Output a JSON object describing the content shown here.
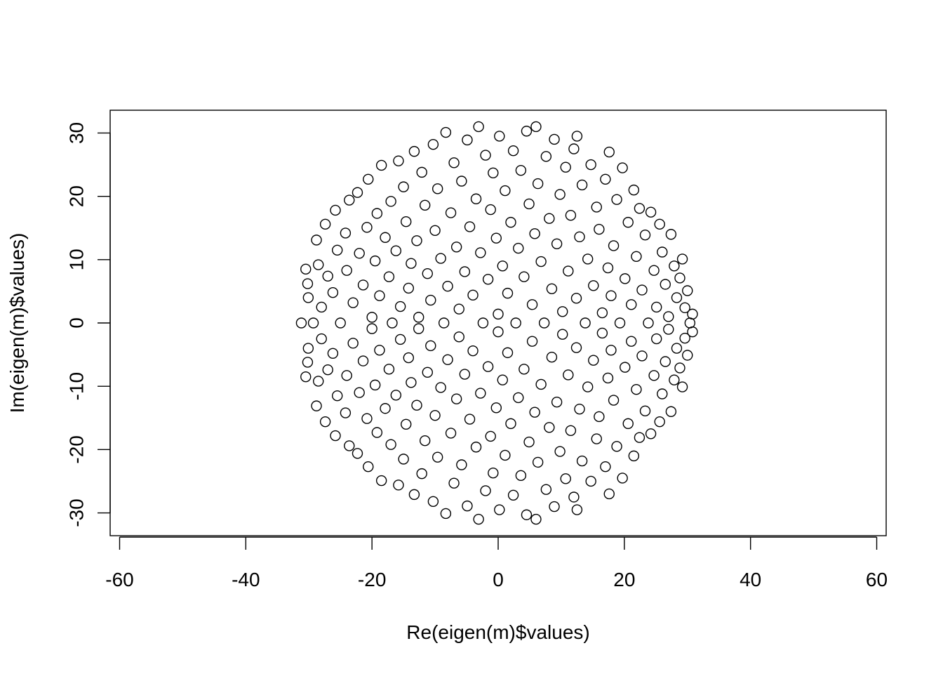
{
  "chart_data": {
    "type": "scatter",
    "title": "",
    "xlabel": "Re(eigen(m)$values)",
    "ylabel": "Im(eigen(m)$values)",
    "xlim": [
      -61.5,
      61.5
    ],
    "ylim": [
      -33.6,
      33.6
    ],
    "x_ticks": [
      -60,
      -40,
      -20,
      0,
      20,
      40,
      60
    ],
    "y_ticks": [
      -30,
      -20,
      -10,
      0,
      10,
      20,
      30
    ],
    "x_tick_labels": [
      "-60",
      "-40",
      "-20",
      "0",
      "20",
      "40",
      "60"
    ],
    "y_tick_labels": [
      "-30",
      "-20",
      "-10",
      "0",
      "10",
      "20",
      "30"
    ],
    "marker": "open-circle",
    "grid": false,
    "legend": "none",
    "point_color": "#000000",
    "series": [
      {
        "description": "Eigenvalues of a random matrix; approximately uniform in the disk of radius ~31.2 centred at the origin. Points are symmetric under complex conjugation (y -> -y). Approximate readings of visible points:",
        "points": [
          [
            -31.2,
            0.0
          ],
          [
            -30.5,
            8.5
          ],
          [
            -30.5,
            -8.5
          ],
          [
            -30.2,
            6.2
          ],
          [
            -30.2,
            -6.2
          ],
          [
            -30.1,
            4.0
          ],
          [
            -30.1,
            -4.0
          ],
          [
            -29.3,
            0.0
          ],
          [
            -28.8,
            13.1
          ],
          [
            -28.8,
            -13.1
          ],
          [
            -28.5,
            9.2
          ],
          [
            -28.5,
            -9.2
          ],
          [
            -28.0,
            2.5
          ],
          [
            -28.0,
            -2.5
          ],
          [
            -27.4,
            15.6
          ],
          [
            -27.4,
            -15.6
          ],
          [
            -27.0,
            7.4
          ],
          [
            -27.0,
            -7.4
          ],
          [
            -26.2,
            4.8
          ],
          [
            -26.2,
            -4.8
          ],
          [
            -25.8,
            17.8
          ],
          [
            -25.8,
            -17.8
          ],
          [
            -25.5,
            11.5
          ],
          [
            -25.5,
            -11.5
          ],
          [
            -25.0,
            0.0
          ],
          [
            -24.2,
            14.2
          ],
          [
            -24.2,
            -14.2
          ],
          [
            -24.0,
            8.3
          ],
          [
            -24.0,
            -8.3
          ],
          [
            -23.6,
            19.4
          ],
          [
            -23.6,
            -19.4
          ],
          [
            -23.0,
            3.2
          ],
          [
            -23.0,
            -3.2
          ],
          [
            -22.3,
            20.6
          ],
          [
            -22.3,
            -20.6
          ],
          [
            -22.0,
            11.0
          ],
          [
            -22.0,
            -11.0
          ],
          [
            -21.4,
            6.0
          ],
          [
            -21.4,
            -6.0
          ],
          [
            -20.8,
            15.1
          ],
          [
            -20.8,
            -15.1
          ],
          [
            -20.6,
            22.7
          ],
          [
            -20.6,
            -22.7
          ],
          [
            -20.0,
            0.9
          ],
          [
            -20.0,
            -0.9
          ],
          [
            -19.5,
            9.8
          ],
          [
            -19.5,
            -9.8
          ],
          [
            -19.2,
            17.3
          ],
          [
            -19.2,
            -17.3
          ],
          [
            -18.8,
            4.3
          ],
          [
            -18.8,
            -4.3
          ],
          [
            -18.5,
            24.9
          ],
          [
            -18.5,
            -24.9
          ],
          [
            -17.9,
            13.5
          ],
          [
            -17.9,
            -13.5
          ],
          [
            -17.3,
            7.3
          ],
          [
            -17.3,
            -7.3
          ],
          [
            -17.0,
            19.2
          ],
          [
            -17.0,
            -19.2
          ],
          [
            -16.8,
            0.0
          ],
          [
            -16.2,
            11.4
          ],
          [
            -16.2,
            -11.4
          ],
          [
            -15.8,
            25.6
          ],
          [
            -15.8,
            -25.6
          ],
          [
            -15.5,
            2.6
          ],
          [
            -15.5,
            -2.6
          ],
          [
            -15.0,
            21.5
          ],
          [
            -15.0,
            -21.5
          ],
          [
            -14.6,
            16.0
          ],
          [
            -14.6,
            -16.0
          ],
          [
            -14.2,
            5.5
          ],
          [
            -14.2,
            -5.5
          ],
          [
            -13.8,
            9.4
          ],
          [
            -13.8,
            -9.4
          ],
          [
            -13.3,
            27.1
          ],
          [
            -13.3,
            -27.1
          ],
          [
            -12.9,
            13.0
          ],
          [
            -12.9,
            -13.0
          ],
          [
            -12.6,
            0.9
          ],
          [
            -12.6,
            -0.9
          ],
          [
            -12.1,
            23.8
          ],
          [
            -12.1,
            -23.8
          ],
          [
            -11.6,
            18.6
          ],
          [
            -11.6,
            -18.6
          ],
          [
            -11.2,
            7.8
          ],
          [
            -11.2,
            -7.8
          ],
          [
            -10.7,
            3.6
          ],
          [
            -10.7,
            -3.6
          ],
          [
            -10.3,
            28.2
          ],
          [
            -10.3,
            -28.2
          ],
          [
            -10.0,
            14.6
          ],
          [
            -10.0,
            -14.6
          ],
          [
            -9.6,
            21.2
          ],
          [
            -9.6,
            -21.2
          ],
          [
            -9.1,
            10.2
          ],
          [
            -9.1,
            -10.2
          ],
          [
            -8.6,
            0.0
          ],
          [
            -8.3,
            30.1
          ],
          [
            -8.3,
            -30.1
          ],
          [
            -8.0,
            5.8
          ],
          [
            -8.0,
            -5.8
          ],
          [
            -7.5,
            17.4
          ],
          [
            -7.5,
            -17.4
          ],
          [
            -7.0,
            25.3
          ],
          [
            -7.0,
            -25.3
          ],
          [
            -6.6,
            12.0
          ],
          [
            -6.6,
            -12.0
          ],
          [
            -6.2,
            2.2
          ],
          [
            -6.2,
            -2.2
          ],
          [
            -5.8,
            22.4
          ],
          [
            -5.8,
            -22.4
          ],
          [
            -5.3,
            8.1
          ],
          [
            -5.3,
            -8.1
          ],
          [
            -4.9,
            28.9
          ],
          [
            -4.9,
            -28.9
          ],
          [
            -4.5,
            15.2
          ],
          [
            -4.5,
            -15.2
          ],
          [
            -4.0,
            4.4
          ],
          [
            -4.0,
            -4.4
          ],
          [
            -3.5,
            19.6
          ],
          [
            -3.5,
            -19.6
          ],
          [
            -3.1,
            31.0
          ],
          [
            -3.1,
            -31.0
          ],
          [
            -2.8,
            11.1
          ],
          [
            -2.8,
            -11.1
          ],
          [
            -2.4,
            0.0
          ],
          [
            -2.0,
            26.5
          ],
          [
            -2.0,
            -26.5
          ],
          [
            -1.6,
            6.9
          ],
          [
            -1.6,
            -6.9
          ],
          [
            -1.2,
            17.9
          ],
          [
            -1.2,
            -17.9
          ],
          [
            -0.8,
            23.7
          ],
          [
            -0.8,
            -23.7
          ],
          [
            -0.3,
            13.4
          ],
          [
            -0.3,
            -13.4
          ],
          [
            0.0,
            1.4
          ],
          [
            0.0,
            -1.4
          ],
          [
            0.2,
            29.5
          ],
          [
            0.2,
            -29.5
          ],
          [
            0.7,
            9.0
          ],
          [
            0.7,
            -9.0
          ],
          [
            1.1,
            20.9
          ],
          [
            1.1,
            -20.9
          ],
          [
            1.5,
            4.7
          ],
          [
            1.5,
            -4.7
          ],
          [
            2.0,
            15.9
          ],
          [
            2.0,
            -15.9
          ],
          [
            2.4,
            27.2
          ],
          [
            2.4,
            -27.2
          ],
          [
            2.8,
            0.0
          ],
          [
            3.2,
            11.8
          ],
          [
            3.2,
            -11.8
          ],
          [
            3.6,
            24.1
          ],
          [
            3.6,
            -24.1
          ],
          [
            4.1,
            7.3
          ],
          [
            4.1,
            -7.3
          ],
          [
            4.5,
            30.3
          ],
          [
            4.5,
            -30.3
          ],
          [
            4.9,
            18.8
          ],
          [
            4.9,
            -18.8
          ],
          [
            5.4,
            2.9
          ],
          [
            5.4,
            -2.9
          ],
          [
            5.8,
            14.1
          ],
          [
            5.8,
            -14.1
          ],
          [
            6.0,
            31.0
          ],
          [
            6.0,
            -31.0
          ],
          [
            6.3,
            22.0
          ],
          [
            6.3,
            -22.0
          ],
          [
            6.8,
            9.7
          ],
          [
            6.8,
            -9.7
          ],
          [
            7.3,
            0.0
          ],
          [
            7.6,
            26.3
          ],
          [
            7.6,
            -26.3
          ],
          [
            8.1,
            16.5
          ],
          [
            8.1,
            -16.5
          ],
          [
            8.5,
            5.4
          ],
          [
            8.5,
            -5.4
          ],
          [
            8.9,
            29.0
          ],
          [
            8.9,
            -29.0
          ],
          [
            9.3,
            12.5
          ],
          [
            9.3,
            -12.5
          ],
          [
            9.8,
            20.3
          ],
          [
            9.8,
            -20.3
          ],
          [
            10.2,
            1.8
          ],
          [
            10.2,
            -1.8
          ],
          [
            10.7,
            24.6
          ],
          [
            10.7,
            -24.6
          ],
          [
            11.1,
            8.2
          ],
          [
            11.1,
            -8.2
          ],
          [
            11.5,
            17.0
          ],
          [
            11.5,
            -17.0
          ],
          [
            12.0,
            27.5
          ],
          [
            12.0,
            -27.5
          ],
          [
            12.4,
            3.9
          ],
          [
            12.4,
            -3.9
          ],
          [
            12.5,
            29.5
          ],
          [
            12.5,
            -29.5
          ],
          [
            12.9,
            13.6
          ],
          [
            12.9,
            -13.6
          ],
          [
            13.3,
            21.8
          ],
          [
            13.3,
            -21.8
          ],
          [
            13.8,
            0.0
          ],
          [
            14.2,
            10.1
          ],
          [
            14.2,
            -10.1
          ],
          [
            14.7,
            25.0
          ],
          [
            14.7,
            -25.0
          ],
          [
            15.1,
            5.9
          ],
          [
            15.1,
            -5.9
          ],
          [
            15.6,
            18.3
          ],
          [
            15.6,
            -18.3
          ],
          [
            16.0,
            14.8
          ],
          [
            16.0,
            -14.8
          ],
          [
            16.5,
            1.6
          ],
          [
            16.5,
            -1.6
          ],
          [
            17.0,
            22.7
          ],
          [
            17.0,
            -22.7
          ],
          [
            17.4,
            8.7
          ],
          [
            17.4,
            -8.7
          ],
          [
            17.6,
            27.0
          ],
          [
            17.6,
            -27.0
          ],
          [
            17.9,
            4.3
          ],
          [
            17.9,
            -4.3
          ],
          [
            18.3,
            12.2
          ],
          [
            18.3,
            -12.2
          ],
          [
            18.8,
            19.5
          ],
          [
            18.8,
            -19.5
          ],
          [
            19.3,
            0.0
          ],
          [
            19.7,
            24.5
          ],
          [
            19.7,
            -24.5
          ],
          [
            20.1,
            7.0
          ],
          [
            20.1,
            -7.0
          ],
          [
            20.6,
            15.9
          ],
          [
            20.6,
            -15.9
          ],
          [
            21.1,
            2.9
          ],
          [
            21.1,
            -2.9
          ],
          [
            21.5,
            21.0
          ],
          [
            21.5,
            -21.0
          ],
          [
            21.9,
            10.5
          ],
          [
            21.9,
            -10.5
          ],
          [
            22.4,
            18.1
          ],
          [
            22.4,
            -18.1
          ],
          [
            22.8,
            5.2
          ],
          [
            22.8,
            -5.2
          ],
          [
            23.3,
            13.9
          ],
          [
            23.3,
            -13.9
          ],
          [
            23.8,
            0.0
          ],
          [
            24.2,
            17.5
          ],
          [
            24.2,
            -17.5
          ],
          [
            24.7,
            8.3
          ],
          [
            24.7,
            -8.3
          ],
          [
            25.1,
            2.5
          ],
          [
            25.1,
            -2.5
          ],
          [
            25.6,
            15.6
          ],
          [
            25.6,
            -15.6
          ],
          [
            26.0,
            11.2
          ],
          [
            26.0,
            -11.2
          ],
          [
            26.5,
            6.1
          ],
          [
            26.5,
            -6.1
          ],
          [
            27.0,
            1.0
          ],
          [
            27.0,
            -1.0
          ],
          [
            27.4,
            14.0
          ],
          [
            27.4,
            -14.0
          ],
          [
            27.9,
            9.0
          ],
          [
            27.9,
            -9.0
          ],
          [
            28.3,
            4.0
          ],
          [
            28.3,
            -4.0
          ],
          [
            28.8,
            7.1
          ],
          [
            28.8,
            -7.1
          ],
          [
            29.2,
            10.1
          ],
          [
            29.2,
            -10.1
          ],
          [
            29.6,
            2.4
          ],
          [
            29.6,
            -2.4
          ],
          [
            30.0,
            5.1
          ],
          [
            30.0,
            -5.1
          ],
          [
            30.4,
            0.0
          ],
          [
            30.8,
            1.4
          ],
          [
            30.8,
            -1.4
          ]
        ]
      }
    ]
  }
}
